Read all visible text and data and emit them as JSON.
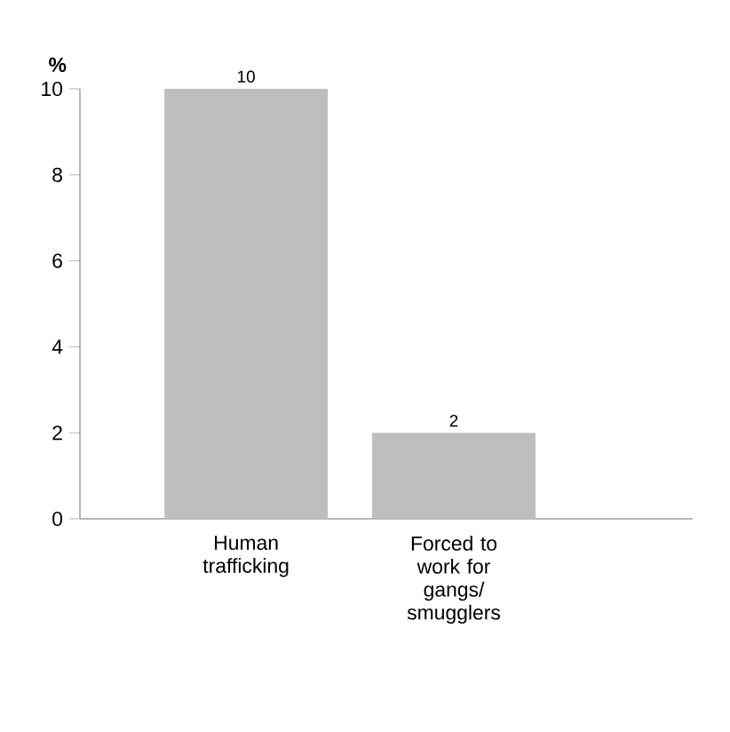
{
  "chart_data": {
    "type": "bar",
    "ylabel": "%",
    "categories": [
      "Human trafficking",
      "Forced to work for gangs/ smugglers"
    ],
    "values": [
      10,
      2
    ],
    "color": "#bcbec0",
    "ylim": [
      0,
      10
    ],
    "yticks": [
      0,
      2,
      4,
      6,
      8,
      10
    ],
    "data_labels": true
  }
}
